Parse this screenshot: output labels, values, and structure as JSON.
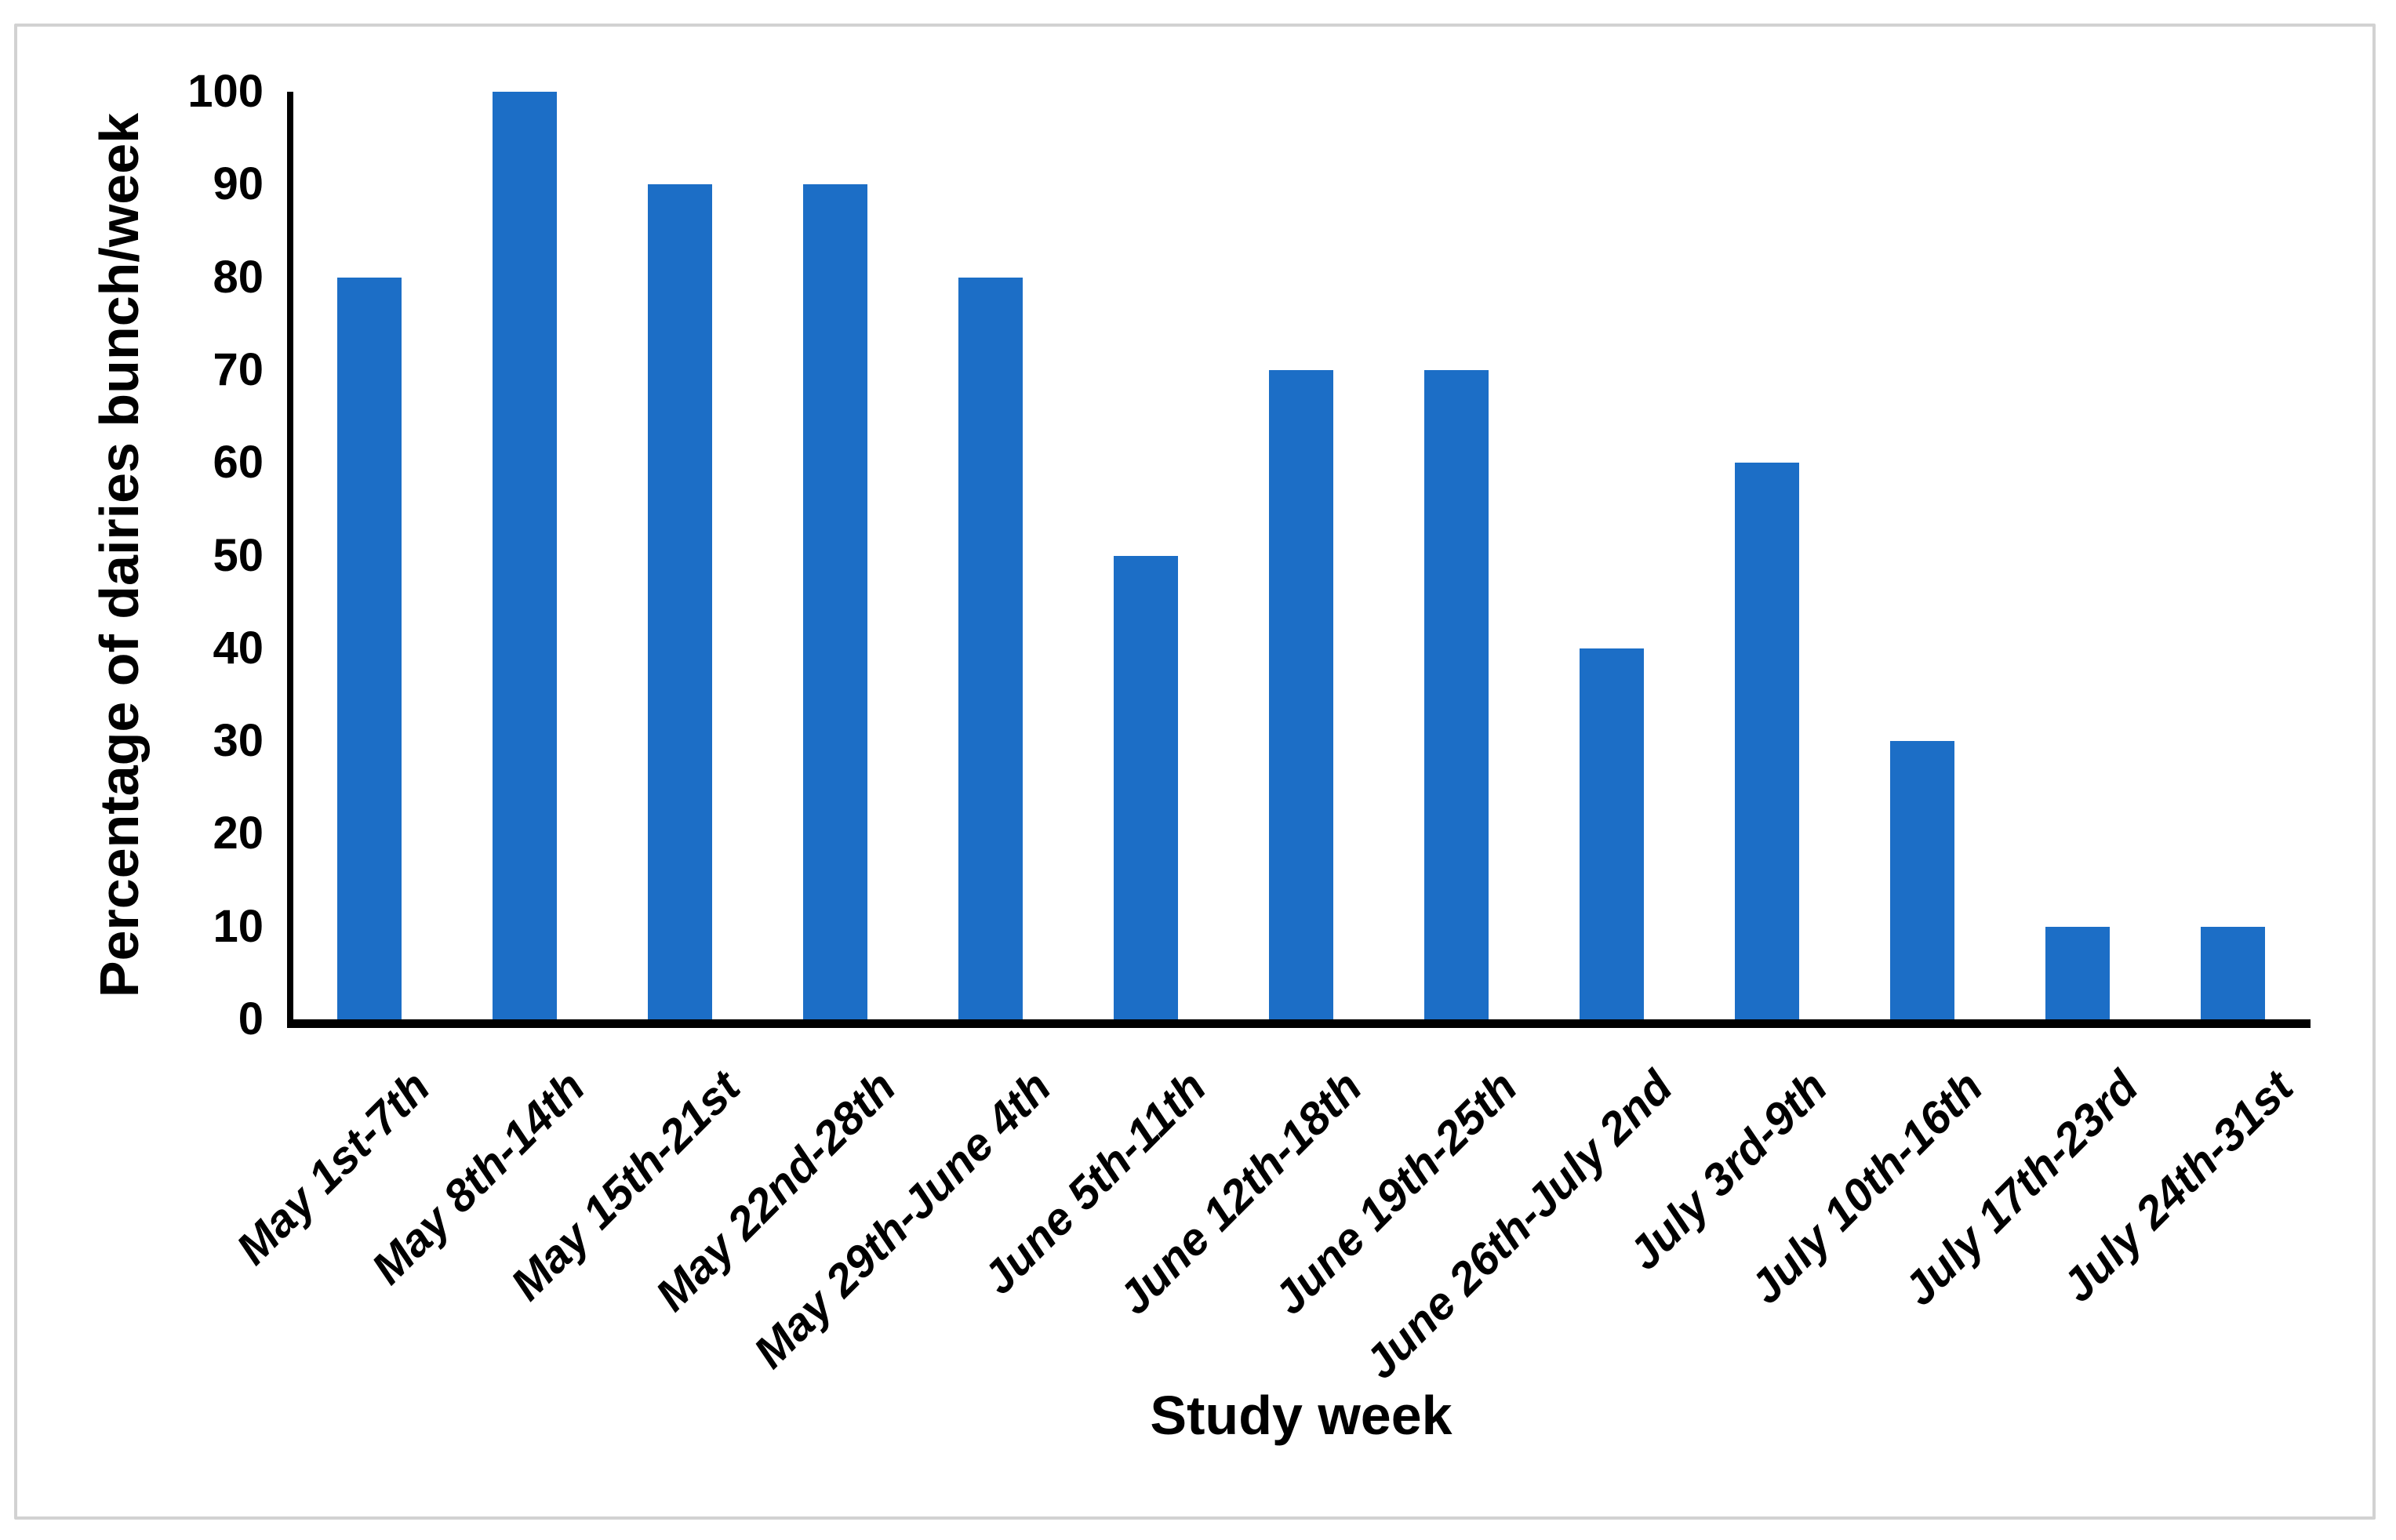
{
  "figure": {
    "background": "#ffffff",
    "border_color": "#d2d2d2"
  },
  "chart_data": {
    "type": "bar",
    "title": "",
    "categories": [
      "May 1st-7th",
      "May 8th-14th",
      "May 15th-21st",
      "May 22nd-28th",
      "May 29th-June 4th",
      "June 5th-11th",
      "June 12th-18th",
      "June 19th-25th",
      "June 26th-July 2nd",
      "July 3rd-9th",
      "July 10th-16th",
      "July 17th-23rd",
      "July 24th-31st"
    ],
    "values": [
      80,
      100,
      90,
      90,
      80,
      50,
      70,
      70,
      40,
      60,
      30,
      10,
      10
    ],
    "xlabel": "Study week",
    "ylabel": "Percentage of dairies bunch/week",
    "ylim": [
      0,
      100
    ],
    "yticks": [
      0,
      10,
      20,
      30,
      40,
      50,
      60,
      70,
      80,
      90,
      100
    ],
    "grid": false,
    "legend": "none",
    "bar_color": "#1c6ec6",
    "axis_color": "#000000",
    "text_color": "#000000"
  }
}
